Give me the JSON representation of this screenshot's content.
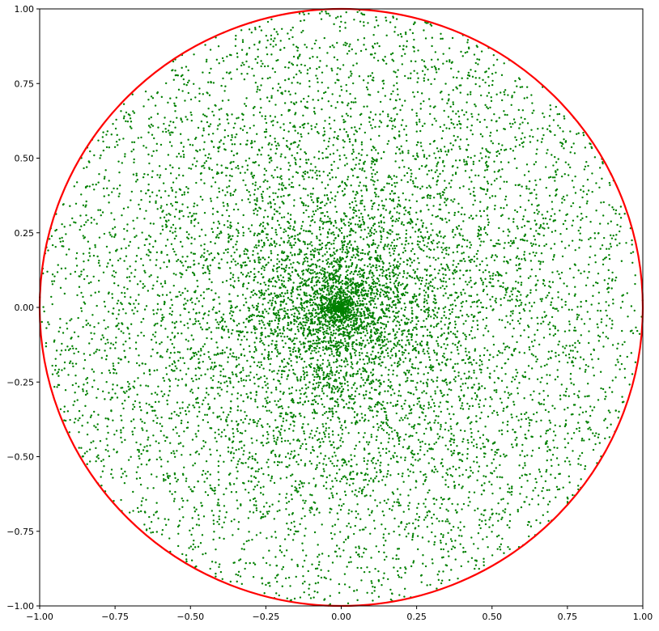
{
  "chart_data": {
    "type": "scatter",
    "title": "",
    "xlabel": "",
    "ylabel": "",
    "xlim": [
      -1.0,
      1.0
    ],
    "ylim": [
      -1.0,
      1.0
    ],
    "grid": false,
    "x_ticks": [
      "−1.00",
      "−0.75",
      "−0.50",
      "−0.25",
      "0.00",
      "0.25",
      "0.50",
      "0.75",
      "1.00"
    ],
    "y_ticks": [
      "−1.00",
      "−0.75",
      "−0.50",
      "−0.25",
      "0.00",
      "0.25",
      "0.50",
      "0.75",
      "1.00"
    ],
    "x_tick_values": [
      -1.0,
      -0.75,
      -0.5,
      -0.25,
      0.0,
      0.25,
      0.5,
      0.75,
      1.0
    ],
    "y_tick_values": [
      -1.0,
      -0.75,
      -0.5,
      -0.25,
      0.0,
      0.25,
      0.5,
      0.75,
      1.0
    ],
    "series": [
      {
        "kind": "scatter",
        "color": "#008000",
        "distribution": "polar-uniform radius and angle within unit disk (dense at center)",
        "approx_count": 10000,
        "points": [
          [
            0.0,
            0.0
          ],
          [
            0.02,
            -0.01
          ],
          [
            -0.03,
            0.02
          ],
          [
            0.05,
            0.04
          ],
          [
            -0.06,
            -0.05
          ],
          [
            0.12,
            -0.08
          ],
          [
            -0.15,
            0.1
          ],
          [
            0.2,
            0.18
          ],
          [
            -0.22,
            -0.2
          ],
          [
            0.3,
            -0.25
          ],
          [
            -0.35,
            0.3
          ],
          [
            0.45,
            0.4
          ],
          [
            -0.5,
            -0.45
          ],
          [
            0.6,
            -0.55
          ],
          [
            -0.65,
            0.6
          ],
          [
            0.75,
            0.5
          ],
          [
            -0.8,
            -0.4
          ],
          [
            0.9,
            -0.3
          ],
          [
            -0.95,
            0.2
          ],
          [
            0.1,
            0.95
          ],
          [
            -0.1,
            -0.95
          ],
          [
            0.55,
            0.75
          ],
          [
            -0.58,
            0.72
          ],
          [
            0.62,
            -0.7
          ],
          [
            -0.7,
            -0.62
          ]
        ]
      },
      {
        "kind": "circle",
        "color": "#ff0000",
        "center": [
          0.0,
          0.0
        ],
        "radius": 1.0
      }
    ]
  }
}
